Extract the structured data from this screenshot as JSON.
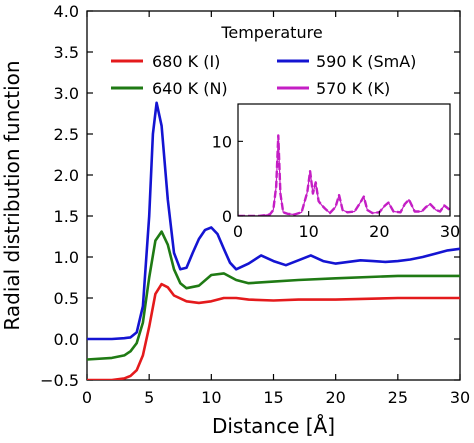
{
  "chart_data": [
    {
      "type": "line",
      "xlabel": "Distance [Å]",
      "ylabel": "Radial distribution function",
      "xlim": [
        0,
        30
      ],
      "ylim": [
        -0.5,
        4.0
      ],
      "x_ticks": [
        0,
        5,
        10,
        15,
        20,
        25,
        30
      ],
      "y_ticks": [
        -0.5,
        0.0,
        0.5,
        1.0,
        1.5,
        2.0,
        2.5,
        3.0,
        3.5,
        4.0
      ],
      "x_tick_labels": [
        "0",
        "5",
        "10",
        "15",
        "20",
        "25",
        "30"
      ],
      "y_tick_labels": [
        "−0.5",
        "0.0",
        "0.5",
        "1.0",
        "1.5",
        "2.0",
        "2.5",
        "3.0",
        "3.5",
        "4.0"
      ],
      "grid": false,
      "legend": {
        "title": "Temperature",
        "placement": "top",
        "columns": 2
      },
      "series": [
        {
          "name": "680 K (I)",
          "color": "#e41a1c",
          "x": [
            0,
            2,
            3,
            3.5,
            4,
            4.5,
            5,
            5.5,
            6,
            6.5,
            7,
            8,
            9,
            10,
            11,
            12,
            13,
            15,
            17,
            20,
            25,
            30
          ],
          "y": [
            -0.5,
            -0.5,
            -0.48,
            -0.45,
            -0.38,
            -0.2,
            0.15,
            0.55,
            0.67,
            0.63,
            0.53,
            0.46,
            0.44,
            0.46,
            0.5,
            0.5,
            0.48,
            0.47,
            0.48,
            0.48,
            0.5,
            0.5
          ]
        },
        {
          "name": "640 K (N)",
          "color": "#1f7a14",
          "x": [
            0,
            2,
            3,
            3.5,
            4,
            4.5,
            5,
            5.5,
            6,
            6.5,
            7,
            7.5,
            8,
            9,
            10,
            11,
            12,
            13,
            15,
            17,
            20,
            25,
            30
          ],
          "y": [
            -0.25,
            -0.23,
            -0.2,
            -0.15,
            -0.05,
            0.2,
            0.75,
            1.2,
            1.31,
            1.15,
            0.85,
            0.68,
            0.62,
            0.65,
            0.78,
            0.8,
            0.72,
            0.68,
            0.7,
            0.72,
            0.74,
            0.77,
            0.77
          ]
        },
        {
          "name": "590 K (SmA)",
          "color": "#1414d2",
          "x": [
            0,
            2,
            3,
            3.5,
            4,
            4.5,
            5,
            5.3,
            5.6,
            6,
            6.5,
            7,
            7.5,
            8,
            8.5,
            9,
            9.5,
            10,
            10.5,
            11,
            11.5,
            12,
            13,
            14,
            15,
            16,
            17,
            18,
            19,
            20,
            21,
            22,
            23,
            24,
            25,
            26,
            27,
            28,
            29,
            30
          ],
          "y": [
            0.0,
            0.0,
            0.01,
            0.02,
            0.08,
            0.4,
            1.5,
            2.5,
            2.88,
            2.6,
            1.7,
            1.05,
            0.85,
            0.87,
            1.05,
            1.22,
            1.33,
            1.36,
            1.28,
            1.1,
            0.93,
            0.85,
            0.92,
            1.02,
            0.95,
            0.9,
            0.96,
            1.02,
            0.95,
            0.92,
            0.94,
            0.96,
            0.95,
            0.94,
            0.95,
            0.97,
            1.0,
            1.04,
            1.08,
            1.1
          ]
        },
        {
          "name": "570 K (K)",
          "color": "#c41ec4",
          "x": [],
          "y": []
        }
      ]
    },
    {
      "type": "line",
      "xlim": [
        0,
        30
      ],
      "ylim": [
        0,
        15
      ],
      "x_ticks": [
        0,
        10,
        20,
        30
      ],
      "y_ticks": [
        0,
        10
      ],
      "x_tick_labels": [
        "0",
        "10",
        "20",
        "30"
      ],
      "y_tick_labels": [
        "0",
        "10"
      ],
      "series": [
        {
          "name": "570 K (K)",
          "color": "#c41ec4",
          "x": [
            0,
            3,
            4.5,
            5,
            5.4,
            5.7,
            6.0,
            6.4,
            7,
            8,
            9,
            9.8,
            10.2,
            10.6,
            11,
            11.4,
            11.8,
            12.3,
            13,
            13.8,
            14.3,
            14.8,
            15.5,
            16.5,
            17.3,
            17.8,
            18.3,
            19,
            20,
            20.8,
            21.3,
            22,
            23,
            23.6,
            24.2,
            25,
            26,
            26.6,
            27.2,
            28,
            28.6,
            29.2,
            30
          ],
          "y": [
            0,
            0,
            0.2,
            0.8,
            4.0,
            10.8,
            3.0,
            0.5,
            0.3,
            0.2,
            0.5,
            3.2,
            6.0,
            3.0,
            4.5,
            2.0,
            1.5,
            1.0,
            0.4,
            1.2,
            2.8,
            0.8,
            0.5,
            0.6,
            1.8,
            2.6,
            0.8,
            0.4,
            0.5,
            1.4,
            1.8,
            0.6,
            0.5,
            1.6,
            2.2,
            0.6,
            0.6,
            1.2,
            1.6,
            0.8,
            0.6,
            1.4,
            0.8
          ]
        }
      ]
    }
  ]
}
